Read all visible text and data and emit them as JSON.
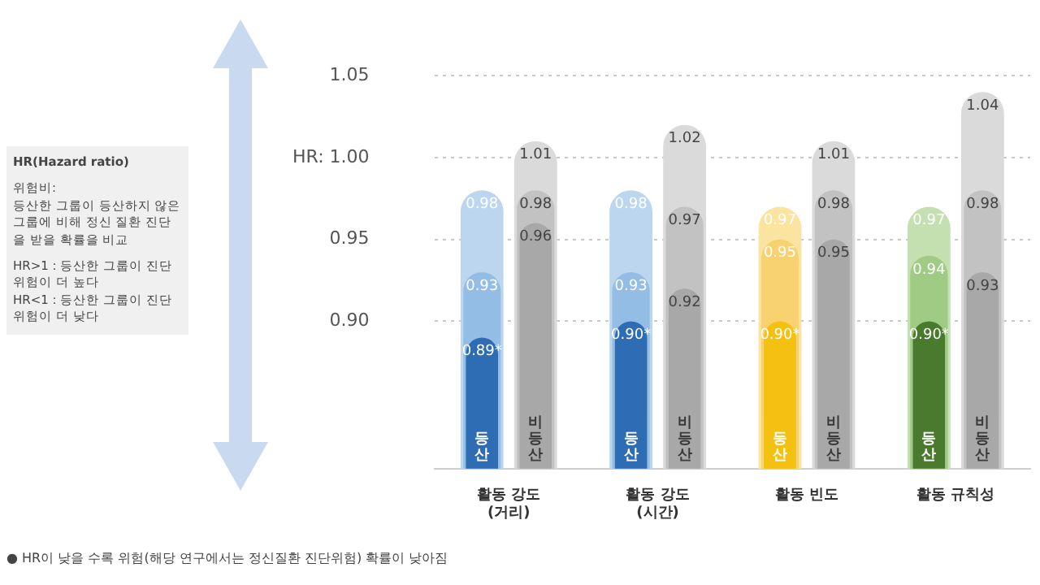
{
  "chart_data": {
    "type": "bar",
    "categories": [
      "활동 강도 (거리)",
      "활동 강도 (시간)",
      "활동 빈도",
      "활동 규칙성"
    ],
    "data_labels": true,
    "series": [
      {
        "colors": [
          "#bcd6ef",
          "#bcd6ef",
          "#fbe3a0",
          "#c4e0b0"
        ],
        "values": [
          0.98,
          0.98,
          0.97,
          0.97
        ]
      },
      {
        "colors": [
          "#94bde6",
          "#94bde6",
          "#f8d270",
          "#a0cb85"
        ],
        "values": [
          0.93,
          0.93,
          0.95,
          0.94
        ]
      },
      {
        "name": "등산",
        "colors": [
          "#2e6db3",
          "#2e6db3",
          "#f4c011",
          "#4a7a2e"
        ],
        "values": [
          0.89,
          0.9,
          0.9,
          0.9
        ],
        "value_labels": [
          "0.89*",
          "0.90*",
          "0.90*",
          "0.90*"
        ]
      },
      {
        "color": "#dadada",
        "values": [
          1.01,
          1.02,
          1.01,
          1.04
        ]
      },
      {
        "color": "#c2c2c2",
        "values": [
          0.98,
          0.97,
          0.98,
          0.98
        ]
      },
      {
        "name": "비등산",
        "color": "#a8a8a8",
        "values": [
          0.96,
          0.92,
          0.95,
          0.93
        ]
      }
    ],
    "ylim": [
      0.81,
      1.05
    ],
    "yticks": [
      {
        "value": 0.9,
        "label": "0.90"
      },
      {
        "value": 0.95,
        "label": "0.95"
      },
      {
        "value": 1.0,
        "label": "HR: 1.00"
      },
      {
        "value": 1.05,
        "label": "1.05"
      }
    ],
    "grid": "y",
    "annotations": [
      "HR(Hazard ratio)",
      "위험비:",
      "등산한 그룹이 등산하지 않은 그룹에 비해 정신 질환 진단을 받을 확률을 비교",
      "HR>1 : 등산한 그룹이 진단 위험이 더 높다",
      "HR<1 : 등산한 그룹이 진단 위험이 더 낮다",
      "● HR이 낮을 수록 위험(해당 연구에서는 정신질환 진단위험) 확률이 낮아짐"
    ]
  }
}
